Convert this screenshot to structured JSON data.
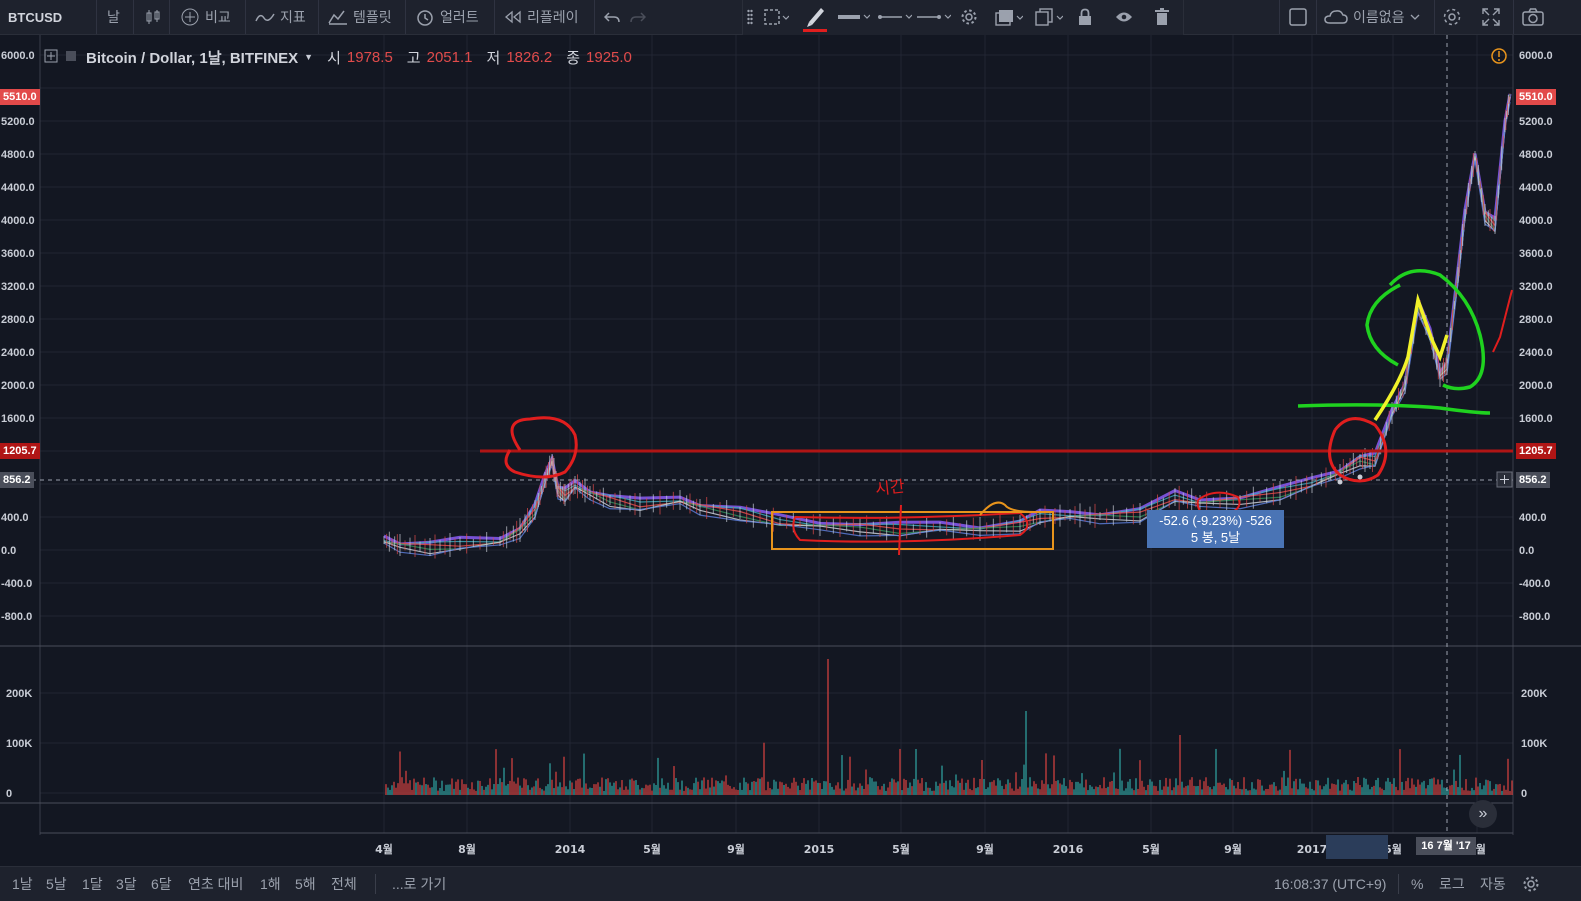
{
  "toolbar": {
    "symbol": "BTCUSD",
    "interval": "날",
    "compare": "비교",
    "indicators": "지표",
    "templates": "템플릿",
    "alerts": "얼러트",
    "replay": "리플레이",
    "layout_name": "이름없음"
  },
  "legend": {
    "title": "Bitcoin / Dollar, 1날, BITFINEX",
    "open_label": "시",
    "open": "1978.5",
    "high_label": "고",
    "high": "2051.1",
    "low_label": "저",
    "low": "1826.2",
    "close_label": "종",
    "close": "1925.0"
  },
  "price_axis": {
    "ticks": [
      "6000.0",
      "5200.0",
      "4800.0",
      "4400.0",
      "4000.0",
      "3600.0",
      "3200.0",
      "2800.0",
      "2400.0",
      "2000.0",
      "1600.0",
      "400.0",
      "0.0",
      "-400.0",
      "-800.0"
    ],
    "badges": [
      {
        "text": "5510.0",
        "color": "#e24a4a"
      },
      {
        "text": "1205.7",
        "color": "#b01515"
      },
      {
        "text": "856.2",
        "color": "#4a4e5a"
      }
    ]
  },
  "volume_axis": {
    "ticks": [
      "200K",
      "100K",
      "0"
    ]
  },
  "time_axis": {
    "labels": [
      "4월",
      "8월",
      "2014",
      "5월",
      "9월",
      "2015",
      "5월",
      "9월",
      "2016",
      "5월",
      "9월",
      "2017",
      "5월",
      "9월"
    ],
    "cursor_label": "16 7월 '17"
  },
  "measure_tooltip": {
    "line1": "-52.6 (-9.23%) -526",
    "line2": "5 봉, 5날"
  },
  "handwriting": "시간",
  "bottom_bar": {
    "ranges": [
      "1날",
      "5날",
      "1달",
      "3달",
      "6달",
      "연초 대비",
      "1해",
      "5해",
      "전체"
    ],
    "goto": "...로 가기",
    "clock": "16:08:37 (UTC+9)",
    "percent": "%",
    "log": "로그",
    "auto": "자동"
  },
  "colors": {
    "background": "#131722",
    "red_annotation": "#e01e1e",
    "green_annotation": "#1fd21f",
    "yellow_annotation": "#f2f22a",
    "orange_box": "#e8941c",
    "tooltip": "#4a74b5"
  }
}
